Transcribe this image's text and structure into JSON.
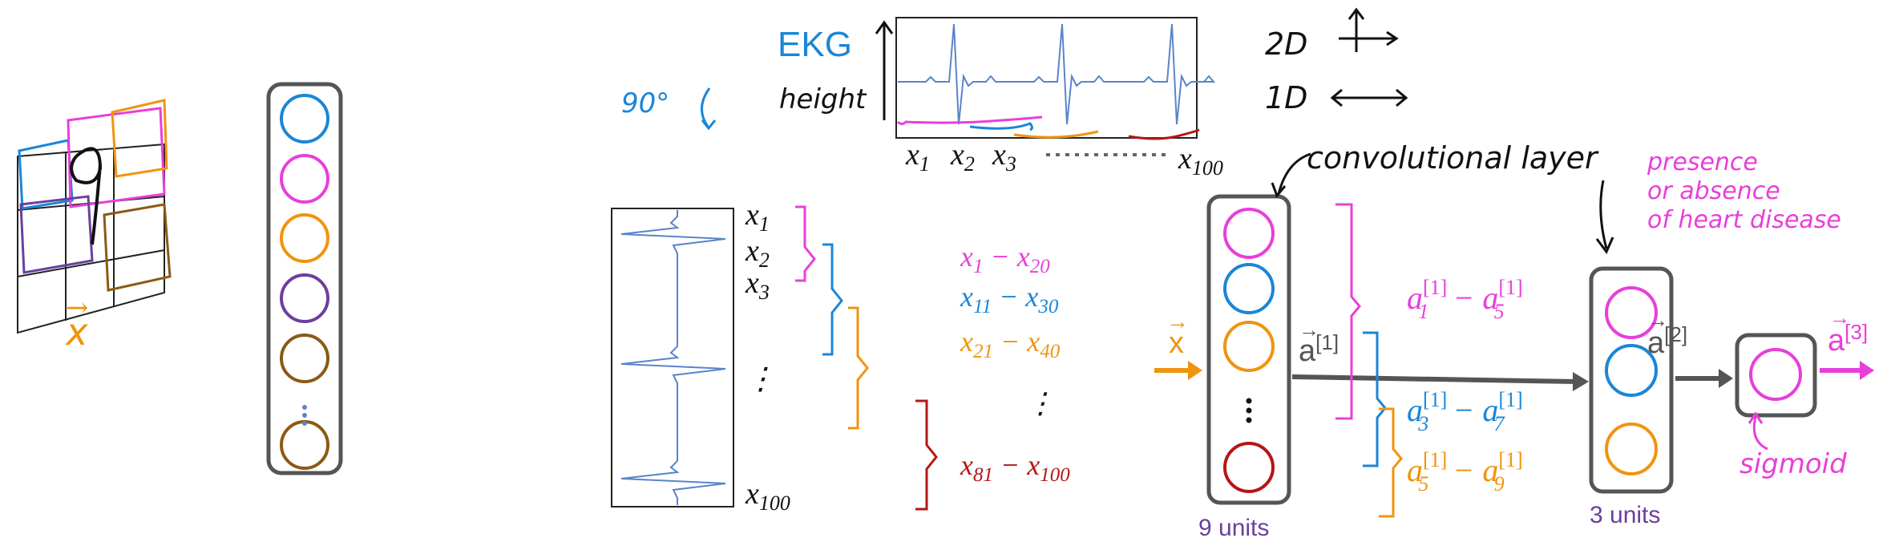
{
  "colors": {
    "ink": "#111111",
    "grey": "#555555",
    "blue": "#1a86d8",
    "magenta": "#e83fd9",
    "orange": "#f0940e",
    "purple": "#6b3f9e",
    "brown": "#8a5a14",
    "red": "#b51616",
    "signal": "#5b84c9"
  },
  "image_panel": {
    "input_label": "x",
    "neuron_colors": [
      "blue",
      "magenta",
      "orange",
      "purple",
      "brown",
      "brown"
    ]
  },
  "ekg_panel": {
    "title": "EKG",
    "y_label": "height",
    "rotate_note": "90°",
    "x_labels": [
      "x1",
      "x2",
      "x3",
      "x100"
    ],
    "dim_2d": "2D",
    "dim_1d": "1D"
  },
  "vertical_signal": {
    "labels": [
      {
        "base": "x",
        "sub": "1"
      },
      {
        "base": "x",
        "sub": "2"
      },
      {
        "base": "x",
        "sub": "3"
      },
      {
        "base": "⋮",
        "sub": ""
      },
      {
        "base": "x",
        "sub": "100"
      }
    ]
  },
  "windows": [
    {
      "from": "1",
      "to": "20",
      "color": "magenta"
    },
    {
      "from": "11",
      "to": "30",
      "color": "blue"
    },
    {
      "from": "21",
      "to": "40",
      "color": "orange"
    },
    {
      "from": "⋮",
      "to": "",
      "color": "ink"
    },
    {
      "from": "81",
      "to": "100",
      "color": "red"
    }
  ],
  "network": {
    "input_label": "x",
    "layer1_title": "convolutional layer",
    "layer1_units": "9 units",
    "layer1_out": "a",
    "layer1_out_sup": "[1]",
    "layer2_units": "3 units",
    "layer2_out": "a",
    "layer2_out_sup": "[2]",
    "layer3_out": "a",
    "layer3_out_sup": "[3]",
    "activation_note": "sigmoid",
    "output_note_lines": [
      "presence",
      "or absence",
      "of heart disease"
    ],
    "groups": [
      {
        "a": "a",
        "i": "1",
        "b": "a",
        "j": "5",
        "sup": "[1]",
        "color": "magenta"
      },
      {
        "a": "a",
        "i": "3",
        "b": "a",
        "j": "7",
        "sup": "[1]",
        "color": "blue"
      },
      {
        "a": "a",
        "i": "5",
        "b": "a",
        "j": "9",
        "sup": "[1]",
        "color": "orange"
      }
    ]
  }
}
